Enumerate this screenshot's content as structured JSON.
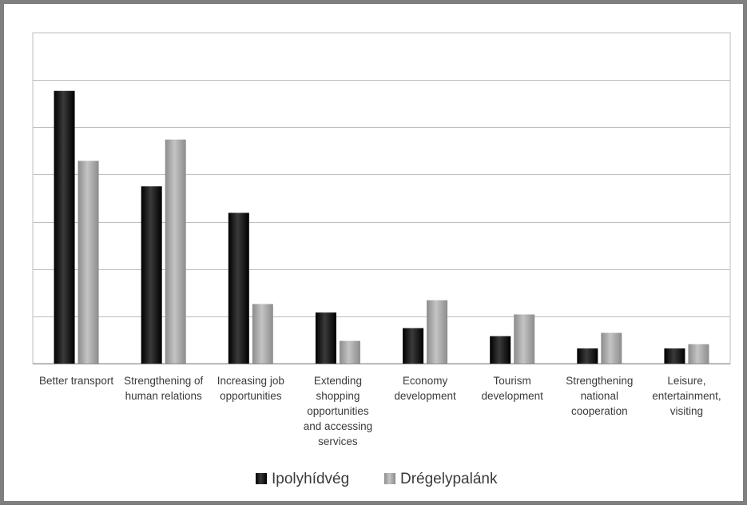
{
  "chart_data": {
    "type": "bar",
    "title": "",
    "xlabel": "",
    "ylabel": "",
    "ylim": [
      0,
      70
    ],
    "y_gridline_step": 10,
    "y_tick_labels_visible": false,
    "grid": true,
    "legend_position": "bottom",
    "categories": [
      "Better transport",
      "Strengthening of human relations",
      "Increasing job opportunities",
      "Extending shopping opportunities and accessing services",
      "Economy development",
      "Tourism development",
      "Strengthening national cooperation",
      "Leisure, entertainment, visiting"
    ],
    "category_label_lines": [
      [
        "Better transport"
      ],
      [
        "Strengthening of",
        "human relations"
      ],
      [
        "Increasing job",
        "opportunities"
      ],
      [
        "Extending",
        "shopping",
        "opportunities",
        "and accessing",
        "services"
      ],
      [
        "Economy",
        "development"
      ],
      [
        "Tourism",
        "development"
      ],
      [
        "Strengthening",
        "national",
        "cooperation"
      ],
      [
        "Leisure,",
        "entertainment,",
        "visiting"
      ]
    ],
    "series": [
      {
        "name": "Ipolyhídvég",
        "color": "#1a1a1a",
        "values": [
          57.7,
          37.5,
          31.9,
          10.8,
          7.5,
          5.8,
          3.2,
          3.2
        ]
      },
      {
        "name": "Drégelypalánk",
        "color": "#a6a6a6",
        "values": [
          42.9,
          47.4,
          12.6,
          4.8,
          13.4,
          10.4,
          6.5,
          4.1
        ]
      }
    ]
  }
}
